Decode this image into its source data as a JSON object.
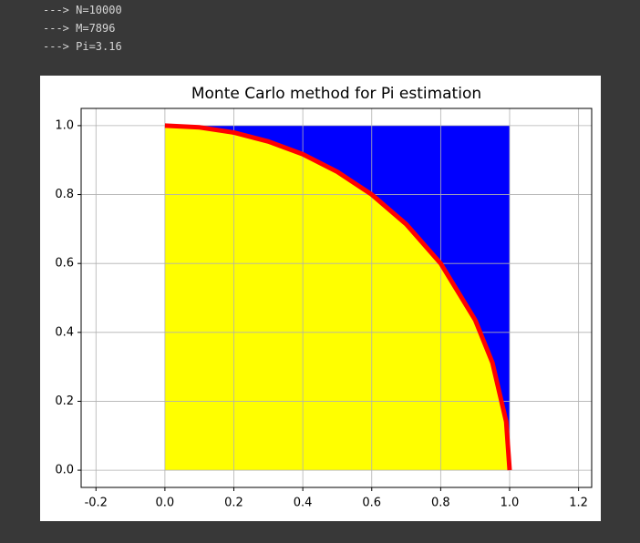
{
  "output_lines": [
    "---> N=10000",
    "---> M=7896",
    "---> Pi=3.16"
  ],
  "chart_data": {
    "type": "line",
    "title": "Monte Carlo method for Pi estimation",
    "x": [
      0,
      0.1,
      0.2,
      0.3,
      0.4,
      0.5,
      0.6,
      0.7,
      0.8,
      0.9,
      0.95,
      0.99,
      1
    ],
    "series": [
      {
        "color": "#ff0000",
        "values": [
          1,
          0.995,
          0.98,
          0.954,
          0.917,
          0.866,
          0.8,
          0.714,
          0.6,
          0.436,
          0.312,
          0.141,
          0
        ]
      }
    ],
    "inside_color": "#ffff00",
    "outside_color": "#0000ff",
    "xlim": [
      -0.243,
      1.238
    ],
    "ylim": [
      -0.05,
      1.05
    ],
    "xticks": [
      -0.2,
      {
        "value": 0,
        "label": "0.0"
      },
      0.2,
      0.4,
      0.6,
      0.8,
      {
        "value": 1,
        "label": "1.0"
      },
      1.2
    ],
    "yticks": [
      {
        "value": 0,
        "label": "0.0"
      },
      0.2,
      0.4,
      0.6,
      0.8,
      {
        "value": 1,
        "label": "1.0"
      }
    ],
    "grid": true
  }
}
